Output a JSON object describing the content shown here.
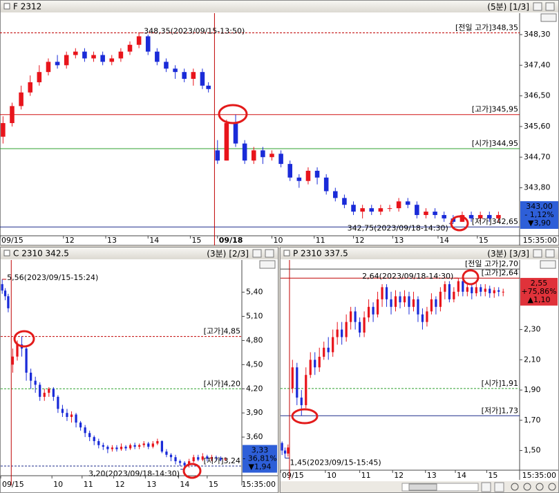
{
  "chart_data": [
    {
      "type": "candlestick",
      "title": "F 2312",
      "period": "(5분)",
      "page": "[1/3]",
      "up_color": "#e8141b",
      "down_color": "#1a2bd8",
      "xlim": [
        0,
        172
      ],
      "ylim": [
        342.39,
        348.93
      ],
      "xticks": [
        {
          "value": 0,
          "label": "09/15"
        },
        {
          "value": 21,
          "label": "12"
        },
        {
          "value": 35,
          "label": "13"
        },
        {
          "value": 49,
          "label": "14"
        },
        {
          "value": 63,
          "label": "15"
        },
        {
          "value": 72,
          "label": "09/18"
        },
        {
          "value": 90,
          "label": "10"
        },
        {
          "value": 104,
          "label": "11"
        },
        {
          "value": 117,
          "label": "12"
        },
        {
          "value": 130,
          "label": "13"
        },
        {
          "value": 145,
          "label": "14"
        },
        {
          "value": 158,
          "label": "15"
        }
      ],
      "time_label": "15:35:00",
      "yticks": [
        {
          "value": 348.3,
          "label": "348,30"
        },
        {
          "value": 347.4,
          "label": "347,40"
        },
        {
          "value": 346.5,
          "label": "346,50"
        },
        {
          "value": 345.6,
          "label": "345,60"
        },
        {
          "value": 344.7,
          "label": "344,70"
        },
        {
          "value": 343.8,
          "label": "343,80"
        }
      ],
      "day_break": 71,
      "candles": {
        "x": [
          1,
          4,
          7,
          10,
          13,
          16,
          19,
          22,
          25,
          28,
          31,
          34,
          37,
          40,
          43,
          46,
          49,
          52,
          55,
          58,
          61,
          64,
          67,
          69,
          72,
          75,
          78,
          81,
          84,
          87,
          90,
          93,
          96,
          99,
          102,
          105,
          108,
          111,
          114,
          117,
          120,
          123,
          126,
          129,
          132,
          135,
          138,
          141,
          144,
          147,
          150,
          153,
          156,
          159,
          162,
          165
        ],
        "open": [
          345.3,
          345.7,
          346.2,
          346.6,
          346.9,
          347.2,
          347.5,
          347.4,
          347.7,
          347.8,
          347.6,
          347.7,
          347.5,
          347.6,
          347.8,
          348.0,
          348.25,
          347.8,
          347.5,
          347.3,
          347.2,
          347.0,
          347.2,
          346.8,
          344.9,
          344.6,
          345.7,
          345.1,
          344.6,
          344.9,
          344.7,
          344.8,
          344.5,
          344.1,
          344.0,
          344.3,
          344.1,
          343.7,
          343.5,
          343.3,
          343.1,
          343.2,
          343.1,
          343.2,
          343.2,
          343.4,
          343.3,
          343.0,
          343.1,
          343.0,
          342.9,
          342.8,
          343.0,
          342.9,
          343.0,
          342.9
        ],
        "high": [
          345.9,
          346.3,
          346.8,
          347.1,
          347.4,
          347.6,
          347.7,
          347.8,
          347.9,
          347.9,
          347.8,
          347.8,
          347.7,
          347.9,
          348.1,
          348.35,
          348.3,
          347.9,
          347.6,
          347.4,
          347.3,
          347.3,
          347.3,
          346.9,
          345.2,
          345.8,
          345.95,
          345.2,
          345.0,
          345.0,
          344.9,
          344.9,
          344.6,
          344.2,
          344.4,
          344.4,
          344.2,
          343.8,
          343.6,
          343.4,
          343.3,
          343.3,
          343.3,
          343.3,
          343.5,
          343.5,
          343.4,
          343.2,
          343.2,
          343.1,
          343.0,
          343.1,
          343.1,
          343.1,
          343.1,
          343.1
        ],
        "low": [
          345.1,
          345.6,
          346.1,
          346.5,
          346.8,
          347.1,
          347.3,
          347.3,
          347.6,
          347.5,
          347.5,
          347.4,
          347.4,
          347.5,
          347.7,
          347.9,
          347.7,
          347.4,
          347.2,
          347.0,
          346.9,
          346.8,
          346.7,
          346.6,
          344.5,
          344.6,
          345.0,
          344.5,
          344.5,
          344.5,
          344.6,
          344.4,
          344.0,
          343.8,
          343.9,
          343.9,
          343.6,
          343.4,
          343.2,
          343.0,
          342.9,
          343.0,
          343.0,
          343.1,
          343.1,
          343.2,
          342.9,
          342.9,
          342.9,
          342.8,
          342.75,
          342.8,
          342.8,
          342.8,
          342.8,
          342.8
        ],
        "close": [
          345.7,
          346.2,
          346.6,
          346.9,
          347.2,
          347.5,
          347.4,
          347.7,
          347.8,
          347.6,
          347.7,
          347.5,
          347.6,
          347.8,
          348.0,
          348.25,
          347.8,
          347.5,
          347.3,
          347.2,
          347.0,
          347.2,
          346.8,
          346.7,
          344.6,
          345.7,
          345.1,
          344.6,
          344.9,
          344.7,
          344.8,
          344.5,
          344.1,
          344.0,
          344.3,
          344.1,
          343.7,
          343.5,
          343.3,
          343.1,
          343.2,
          343.1,
          343.2,
          343.2,
          343.4,
          343.3,
          343.0,
          343.1,
          343.0,
          342.9,
          342.8,
          343.0,
          342.9,
          343.0,
          342.9,
          343.0
        ]
      },
      "levels": [
        {
          "value": 348.35,
          "label": "[전일 고가]348,35",
          "color": "#c00000",
          "style": "dashed"
        },
        {
          "value": 345.95,
          "label": "[고가]345,95",
          "color": "#d01010",
          "style": "solid"
        },
        {
          "value": 344.95,
          "label": "[시가]344,95",
          "color": "#2ca02c",
          "style": "solid"
        },
        {
          "value": 342.65,
          "label": "[저가]342,65",
          "color": "#1b2a8a",
          "style": "solid"
        }
      ],
      "annotations": [
        {
          "value": 348.35,
          "label": "348,35(2023/09/15-13:50)"
        },
        {
          "value": 342.75,
          "label": "342,75(2023/09/18-14:30)"
        }
      ],
      "price_box": {
        "lines": [
          "343,00",
          "- 1,12%",
          "▼3,90"
        ],
        "color": "#2e5fd8"
      }
    },
    {
      "type": "candlestick",
      "title": "C 2310 342.5",
      "period": "(3분)",
      "page": "[2/3]",
      "up_color": "#e8141b",
      "down_color": "#1a2bd8",
      "xlim": [
        0,
        160
      ],
      "ylim": [
        3.12,
        5.8
      ],
      "xticks": [
        {
          "value": 0,
          "label": "09/15"
        },
        {
          "value": 34,
          "label": "10"
        },
        {
          "value": 54,
          "label": "11"
        },
        {
          "value": 75,
          "label": "12"
        },
        {
          "value": 96,
          "label": "13"
        },
        {
          "value": 118,
          "label": "14"
        },
        {
          "value": 137,
          "label": "15"
        }
      ],
      "time_label": "15:35:00",
      "yticks": [
        {
          "value": 5.4,
          "label": "5,40"
        },
        {
          "value": 5.1,
          "label": "5,10"
        },
        {
          "value": 4.8,
          "label": "4,80"
        },
        {
          "value": 4.5,
          "label": "4,50"
        },
        {
          "value": 4.2,
          "label": "4,20"
        },
        {
          "value": 3.9,
          "label": "3,90"
        },
        {
          "value": 3.6,
          "label": "3,60"
        }
      ],
      "day_break": 7,
      "candles": {
        "x": [
          1,
          3,
          5,
          8,
          11,
          14,
          17,
          20,
          23,
          26,
          29,
          32,
          35,
          38,
          41,
          44,
          47,
          50,
          53,
          56,
          59,
          62,
          65,
          68,
          71,
          74,
          77,
          80,
          83,
          86,
          89,
          92,
          95,
          98,
          101,
          104,
          107,
          110,
          113,
          116,
          119,
          122,
          125,
          128,
          131,
          134,
          137,
          140,
          143,
          146,
          149
        ],
        "open": [
          5.5,
          5.42,
          5.35,
          4.5,
          4.6,
          4.75,
          4.7,
          4.4,
          4.3,
          4.25,
          4.1,
          4.15,
          4.2,
          4.1,
          3.95,
          3.9,
          3.85,
          3.88,
          3.78,
          3.72,
          3.65,
          3.6,
          3.55,
          3.5,
          3.48,
          3.45,
          3.47,
          3.45,
          3.48,
          3.46,
          3.5,
          3.48,
          3.5,
          3.52,
          3.48,
          3.52,
          3.55,
          3.42,
          3.38,
          3.35,
          3.3,
          3.28,
          3.25,
          3.3,
          3.35,
          3.32,
          3.36,
          3.33,
          3.35,
          3.34,
          3.32
        ],
        "high": [
          5.56,
          5.45,
          5.38,
          4.7,
          4.8,
          4.85,
          4.72,
          4.45,
          4.35,
          4.28,
          4.2,
          4.22,
          4.22,
          4.12,
          4.0,
          3.95,
          3.92,
          3.9,
          3.8,
          3.75,
          3.68,
          3.62,
          3.58,
          3.53,
          3.5,
          3.5,
          3.5,
          3.52,
          3.5,
          3.52,
          3.53,
          3.52,
          3.55,
          3.54,
          3.55,
          3.58,
          3.56,
          3.45,
          3.4,
          3.38,
          3.32,
          3.3,
          3.33,
          3.38,
          3.38,
          3.4,
          3.38,
          3.38,
          3.37,
          3.36,
          3.35
        ],
        "low": [
          5.38,
          5.3,
          5.15,
          4.4,
          4.55,
          4.6,
          4.3,
          4.2,
          4.15,
          4.05,
          4.05,
          4.1,
          4.05,
          3.9,
          3.85,
          3.8,
          3.78,
          3.72,
          3.68,
          3.6,
          3.55,
          3.5,
          3.46,
          3.44,
          3.4,
          3.42,
          3.42,
          3.43,
          3.43,
          3.44,
          3.45,
          3.45,
          3.47,
          3.45,
          3.46,
          3.5,
          3.4,
          3.35,
          3.3,
          3.26,
          3.24,
          3.2,
          3.22,
          3.28,
          3.3,
          3.3,
          3.3,
          3.3,
          3.31,
          3.3,
          3.3
        ],
        "close": [
          5.42,
          5.35,
          5.2,
          4.6,
          4.75,
          4.7,
          4.4,
          4.3,
          4.25,
          4.1,
          4.15,
          4.2,
          4.1,
          3.95,
          3.9,
          3.85,
          3.88,
          3.78,
          3.72,
          3.65,
          3.6,
          3.55,
          3.5,
          3.48,
          3.45,
          3.47,
          3.45,
          3.48,
          3.46,
          3.5,
          3.48,
          3.5,
          3.52,
          3.48,
          3.52,
          3.55,
          3.42,
          3.38,
          3.35,
          3.3,
          3.28,
          3.25,
          3.3,
          3.35,
          3.32,
          3.36,
          3.33,
          3.35,
          3.34,
          3.32,
          3.33
        ]
      },
      "levels": [
        {
          "value": 4.85,
          "label": "[고가]4,85",
          "color": "#c00000",
          "style": "dashed"
        },
        {
          "value": 4.2,
          "label": "[시가]4,20",
          "color": "#2ca02c",
          "style": "dashed"
        },
        {
          "value": 3.24,
          "label": "[저가]3,24",
          "color": "#1b2a8a",
          "style": "dashed"
        }
      ],
      "annotations": [
        {
          "value": 5.56,
          "label": "5,56(2023/09/15-15:24)"
        },
        {
          "value": 3.2,
          "label": "3,20(2023/09/18-14:30)"
        }
      ],
      "price_box": {
        "lines": [
          "3,33",
          "- 36,81%",
          "▼1,94"
        ],
        "color": "#2e5fd8"
      }
    },
    {
      "type": "candlestick",
      "title": "P 2310 337.5",
      "period": "(3분)",
      "page": "[3/3]",
      "up_color": "#e8141b",
      "down_color": "#1a2bd8",
      "xlim": [
        0,
        160
      ],
      "ylim": [
        1.37,
        2.76
      ],
      "xticks": [
        {
          "value": 0,
          "label": "09/15"
        },
        {
          "value": 30,
          "label": "10"
        },
        {
          "value": 53,
          "label": "11"
        },
        {
          "value": 75,
          "label": "12"
        },
        {
          "value": 97,
          "label": "13"
        },
        {
          "value": 117,
          "label": "14"
        },
        {
          "value": 138,
          "label": "15"
        }
      ],
      "time_label": "15:35:00",
      "yticks": [
        {
          "value": 2.3,
          "label": "2,30"
        },
        {
          "value": 2.1,
          "label": "2,10"
        },
        {
          "value": 1.9,
          "label": "1,90"
        },
        {
          "value": 1.7,
          "label": "1,70"
        },
        {
          "value": 1.5,
          "label": "1,50"
        }
      ],
      "day_break": 6,
      "candles": {
        "x": [
          1,
          3,
          5,
          8,
          11,
          14,
          17,
          20,
          23,
          26,
          29,
          32,
          35,
          38,
          41,
          44,
          47,
          50,
          53,
          56,
          59,
          62,
          65,
          68,
          71,
          74,
          77,
          80,
          83,
          86,
          89,
          92,
          95,
          98,
          101,
          104,
          107,
          110,
          113,
          116,
          119,
          122,
          125,
          128,
          131,
          134,
          137,
          140,
          143,
          146,
          149
        ],
        "open": [
          1.55,
          1.5,
          1.48,
          1.91,
          2.05,
          1.85,
          1.8,
          2.0,
          2.1,
          2.05,
          2.12,
          2.18,
          2.15,
          2.25,
          2.3,
          2.25,
          2.35,
          2.42,
          2.35,
          2.28,
          2.38,
          2.45,
          2.4,
          2.5,
          2.58,
          2.5,
          2.45,
          2.52,
          2.48,
          2.52,
          2.45,
          2.5,
          2.4,
          2.35,
          2.42,
          2.5,
          2.45,
          2.55,
          2.6,
          2.5,
          2.55,
          2.62,
          2.55,
          2.58,
          2.54,
          2.58,
          2.55,
          2.57,
          2.54,
          2.56,
          2.55
        ],
        "high": [
          1.56,
          1.52,
          1.54,
          2.1,
          2.08,
          1.9,
          2.05,
          2.15,
          2.15,
          2.18,
          2.22,
          2.25,
          2.3,
          2.35,
          2.35,
          2.4,
          2.45,
          2.45,
          2.38,
          2.42,
          2.5,
          2.48,
          2.55,
          2.6,
          2.6,
          2.55,
          2.56,
          2.55,
          2.56,
          2.55,
          2.55,
          2.52,
          2.44,
          2.45,
          2.54,
          2.52,
          2.58,
          2.62,
          2.62,
          2.58,
          2.64,
          2.64,
          2.61,
          2.6,
          2.61,
          2.6,
          2.6,
          2.59,
          2.58,
          2.58,
          2.57
        ],
        "low": [
          1.47,
          1.45,
          1.46,
          1.88,
          1.8,
          1.73,
          1.78,
          1.98,
          2.0,
          2.02,
          2.1,
          2.1,
          2.12,
          2.2,
          2.2,
          2.22,
          2.3,
          2.3,
          2.25,
          2.25,
          2.35,
          2.35,
          2.38,
          2.45,
          2.45,
          2.4,
          2.42,
          2.44,
          2.45,
          2.4,
          2.42,
          2.35,
          2.3,
          2.32,
          2.4,
          2.4,
          2.42,
          2.5,
          2.48,
          2.48,
          2.52,
          2.52,
          2.52,
          2.5,
          2.52,
          2.52,
          2.52,
          2.51,
          2.51,
          2.52,
          2.52
        ],
        "close": [
          1.5,
          1.48,
          1.52,
          2.05,
          1.85,
          1.8,
          2.0,
          2.1,
          2.05,
          2.12,
          2.18,
          2.15,
          2.25,
          2.3,
          2.25,
          2.35,
          2.42,
          2.35,
          2.28,
          2.38,
          2.45,
          2.4,
          2.5,
          2.58,
          2.5,
          2.45,
          2.52,
          2.48,
          2.52,
          2.45,
          2.5,
          2.4,
          2.35,
          2.42,
          2.5,
          2.45,
          2.55,
          2.6,
          2.5,
          2.55,
          2.62,
          2.55,
          2.58,
          2.54,
          2.58,
          2.55,
          2.57,
          2.54,
          2.56,
          2.55,
          2.55
        ]
      },
      "levels": [
        {
          "value": 2.7,
          "label": "[전일 고가]2,70",
          "color": "#444444",
          "style": "solid"
        },
        {
          "value": 2.64,
          "label": "[고가]2,64",
          "color": "#c00000",
          "style": "solid"
        },
        {
          "value": 1.91,
          "label": "[시가]1,91",
          "color": "#2ca02c",
          "style": "dashed"
        },
        {
          "value": 1.73,
          "label": "[저가]1,73",
          "color": "#1b2a8a",
          "style": "solid"
        }
      ],
      "annotations": [
        {
          "value": 2.64,
          "label": "2,64(2023/09/18-14:30)"
        },
        {
          "value": 1.45,
          "label": "1,45(2023/09/15-15:45)"
        }
      ],
      "price_box": {
        "lines": [
          "2,55",
          "+75,86%",
          "▲1,10"
        ],
        "color": "#e0323a"
      }
    }
  ]
}
